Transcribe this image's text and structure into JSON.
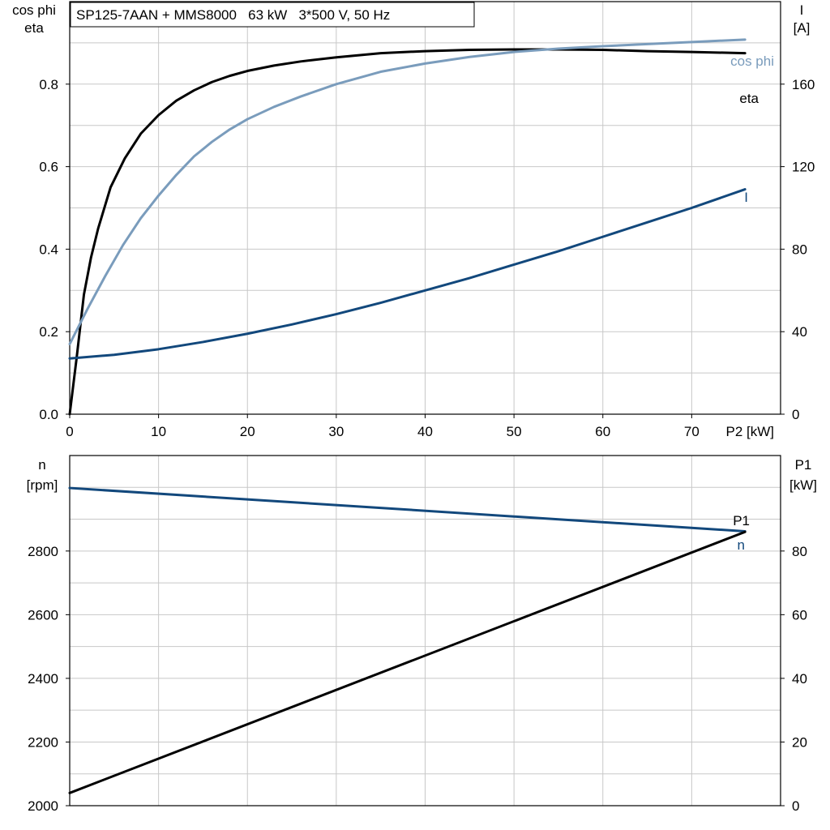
{
  "colors": {
    "eta": "#000000",
    "cos_phi": "#7a9cbc",
    "current": "#12487c",
    "speed": "#12487c",
    "p1": "#000000",
    "grid": "#c8c8c8",
    "axis": "#000000"
  },
  "chart_data": [
    {
      "type": "line",
      "title": "SP125-7AAN + MMS8000   63 kW   3*500 V, 50 Hz",
      "xlabel": "P2 [kW]",
      "ylabel_left": [
        "cos phi",
        "eta"
      ],
      "ylabel_right": [
        "I",
        "[A]"
      ],
      "xlim": [
        0,
        80
      ],
      "ylim_left": [
        0,
        1.0
      ],
      "ylim_right": [
        0,
        200
      ],
      "x_ticks": [
        0,
        10,
        20,
        30,
        40,
        50,
        60,
        70
      ],
      "y_ticks_left": [
        0.0,
        0.2,
        0.4,
        0.6,
        0.8
      ],
      "y_ticks_right": [
        0,
        40,
        80,
        120,
        160
      ],
      "grid": true,
      "series": [
        {
          "name": "eta",
          "axis": "left",
          "x": [
            0,
            0.8,
            1.6,
            2.4,
            3.2,
            4.6,
            6.2,
            8,
            10,
            12,
            14,
            16,
            18,
            20,
            23,
            26,
            30,
            35,
            40,
            45,
            50,
            55,
            60,
            65,
            70,
            76
          ],
          "y": [
            0,
            0.14,
            0.29,
            0.38,
            0.45,
            0.55,
            0.62,
            0.68,
            0.725,
            0.76,
            0.785,
            0.805,
            0.82,
            0.832,
            0.845,
            0.855,
            0.865,
            0.875,
            0.88,
            0.883,
            0.884,
            0.884,
            0.883,
            0.88,
            0.878,
            0.875
          ]
        },
        {
          "name": "cos phi",
          "axis": "left",
          "x": [
            0,
            2,
            4,
            6,
            8,
            10,
            12,
            14,
            16,
            18,
            20,
            23,
            26,
            30,
            35,
            40,
            45,
            50,
            55,
            60,
            65,
            70,
            76
          ],
          "y": [
            0.17,
            0.255,
            0.335,
            0.41,
            0.475,
            0.53,
            0.58,
            0.625,
            0.66,
            0.69,
            0.715,
            0.745,
            0.77,
            0.8,
            0.83,
            0.85,
            0.866,
            0.878,
            0.886,
            0.892,
            0.897,
            0.902,
            0.908
          ]
        },
        {
          "name": "I",
          "axis": "right",
          "x": [
            0,
            5,
            10,
            15,
            20,
            25,
            30,
            35,
            40,
            45,
            50,
            55,
            60,
            65,
            70,
            76
          ],
          "y": [
            27,
            28.8,
            31.5,
            35,
            39,
            43.5,
            48.5,
            54,
            60,
            66,
            72.5,
            79,
            86,
            93,
            100,
            109
          ]
        }
      ]
    },
    {
      "type": "line",
      "xlabel": "",
      "ylabel_left": [
        "n",
        "[rpm]"
      ],
      "ylabel_right": [
        "P1",
        "[kW]"
      ],
      "xlim": [
        0,
        80
      ],
      "ylim_left": [
        2000,
        3100
      ],
      "ylim_right": [
        0,
        110
      ],
      "y_ticks_left": [
        2000,
        2200,
        2400,
        2600,
        2800
      ],
      "y_ticks_right": [
        0,
        20,
        40,
        60,
        80
      ],
      "grid": true,
      "series": [
        {
          "name": "n",
          "axis": "left",
          "x": [
            0,
            76
          ],
          "y": [
            2998,
            2862
          ]
        },
        {
          "name": "P1",
          "axis": "right",
          "x": [
            0,
            76
          ],
          "y": [
            4,
            86
          ]
        }
      ]
    }
  ]
}
